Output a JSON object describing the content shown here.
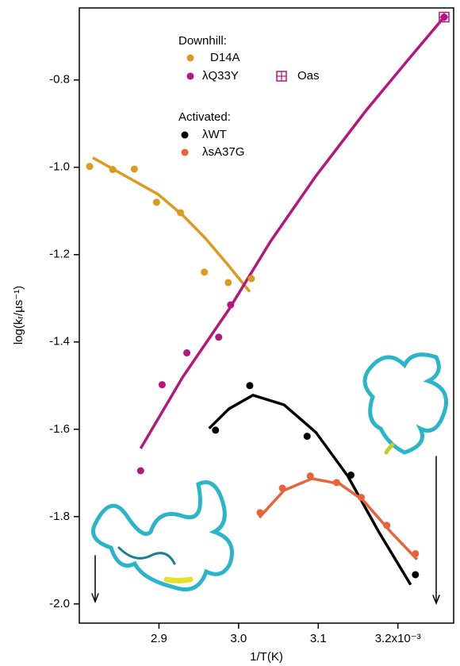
{
  "chart_data": {
    "type": "scatter-fit",
    "x_label": "1/T(K)",
    "y_label": "log(kᵣ/µs⁻¹)",
    "xlim": [
      2.8,
      3.27
    ],
    "ylim": [
      -2.044,
      -0.635
    ],
    "xticks": [
      2.9,
      {
        "value": 3,
        "label": "3.0"
      },
      3.1,
      {
        "value": 3.2,
        "label": "3.2x10⁻³"
      }
    ],
    "yticks": [
      -0.8,
      {
        "value": -1,
        "label": "-1.0"
      },
      -1.2,
      -1.4,
      -1.6,
      -1.8,
      {
        "value": -2,
        "label": "-2.0"
      }
    ],
    "legend_titles": [
      "Downhill:",
      "Activated:"
    ],
    "series": [
      {
        "name": "D14A",
        "color": "#dc9a1e",
        "marker": "circle",
        "x": [
          2.813,
          2.842,
          2.869,
          2.897,
          2.927,
          2.957,
          2.987,
          3.016
        ],
        "values": [
          -0.998,
          -1.005,
          -1.004,
          -1.08,
          -1.104,
          -1.24,
          -1.264,
          -1.255
        ],
        "fit_x": [
          2.817,
          2.858,
          2.899,
          2.93,
          2.958,
          2.986,
          3.014
        ],
        "fit_values": [
          -0.978,
          -1.02,
          -1.062,
          -1.11,
          -1.162,
          -1.222,
          -1.285
        ]
      },
      {
        "name": "λQ33Y",
        "color": "#b5167e",
        "marker": "circle",
        "x": [
          2.877,
          2.904,
          2.935,
          2.975,
          2.99,
          3.258
        ],
        "values": [
          -1.695,
          -1.498,
          -1.425,
          -1.389,
          -1.315,
          -0.656
        ],
        "fit_x": [
          2.877,
          2.93,
          2.988,
          3.04,
          3.097,
          3.16,
          3.21,
          3.258
        ],
        "fit_values": [
          -1.644,
          -1.48,
          -1.325,
          -1.17,
          -1.02,
          -0.87,
          -0.76,
          -0.656
        ]
      },
      {
        "name": "Oas",
        "color": "#b5167e",
        "marker": "square",
        "x": [
          3.258
        ],
        "values": [
          -0.656
        ]
      },
      {
        "name": "λWT",
        "color": "#000000",
        "marker": "circle",
        "x": [
          2.971,
          3.014,
          3.086,
          3.141,
          3.222
        ],
        "values": [
          -1.602,
          -1.5,
          -1.616,
          -1.705,
          -1.933
        ],
        "fit_x": [
          2.963,
          2.988,
          3.018,
          3.057,
          3.097,
          3.137,
          3.176,
          3.216
        ],
        "fit_values": [
          -1.598,
          -1.553,
          -1.522,
          -1.544,
          -1.607,
          -1.707,
          -1.835,
          -1.956
        ]
      },
      {
        "name": "λsA37G",
        "color": "#e8623a",
        "marker": "circle",
        "x": [
          3.027,
          3.055,
          3.09,
          3.123,
          3.154,
          3.186,
          3.222
        ],
        "values": [
          -1.791,
          -1.735,
          -1.707,
          -1.722,
          -1.756,
          -1.82,
          -1.885
        ],
        "fit_x": [
          3.026,
          3.057,
          3.092,
          3.127,
          3.156,
          3.191,
          3.224
        ],
        "fit_values": [
          -1.802,
          -1.74,
          -1.713,
          -1.725,
          -1.762,
          -1.835,
          -1.898
        ]
      }
    ]
  }
}
